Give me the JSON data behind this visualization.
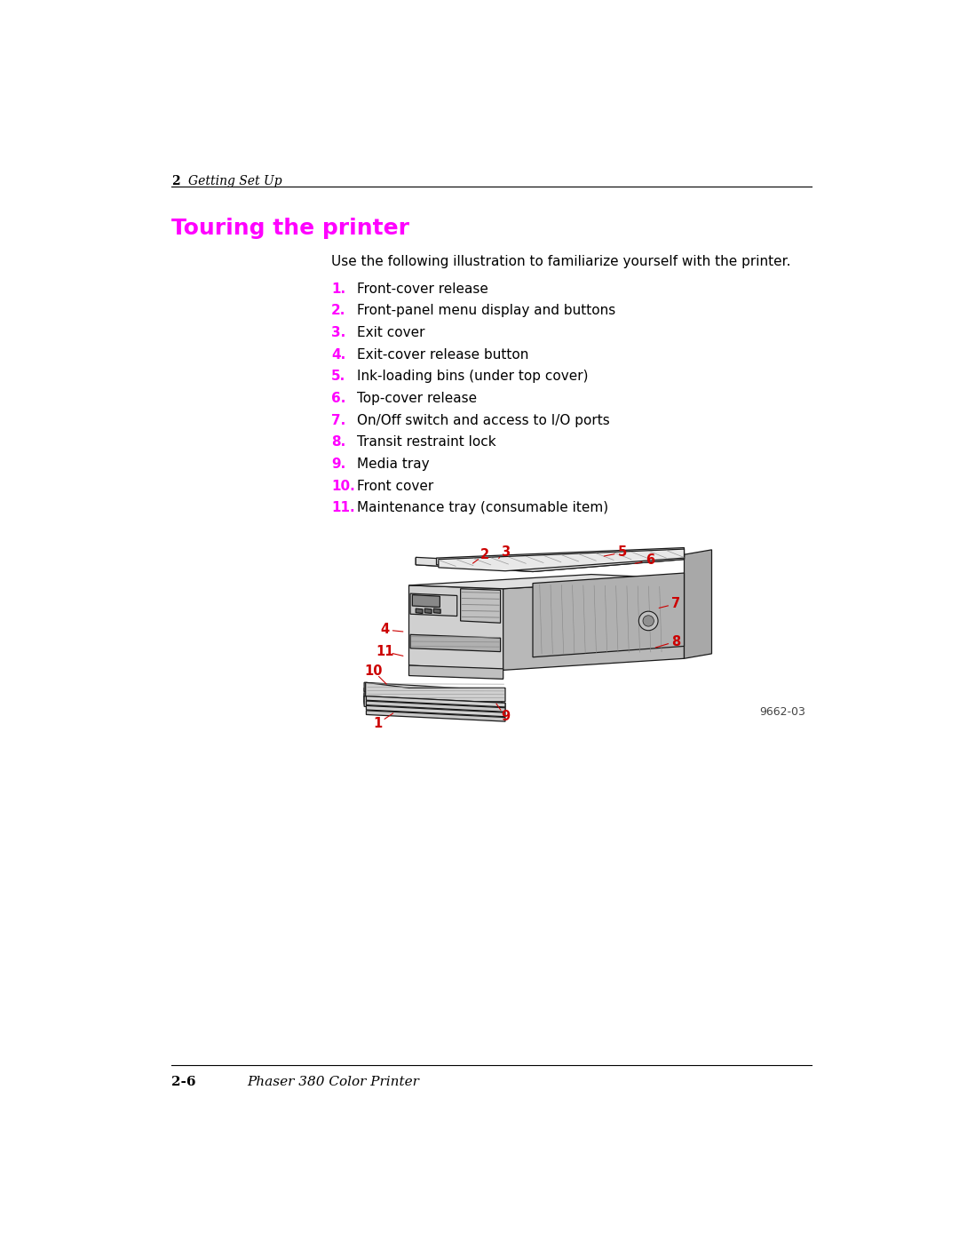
{
  "bg_color": "#ffffff",
  "page_width": 10.8,
  "page_height": 13.97,
  "header_chapter_num": "2",
  "header_chapter_title": "Getting Set Up",
  "section_title": "Touring the printer",
  "section_title_color": "#ff00ff",
  "intro_text": "Use the following illustration to familiarize yourself with the printer.",
  "items": [
    {
      "num": "1.",
      "text": "Front-cover release"
    },
    {
      "num": "2.",
      "text": "Front-panel menu display and buttons"
    },
    {
      "num": "3.",
      "text": "Exit cover"
    },
    {
      "num": "4.",
      "text": "Exit-cover release button"
    },
    {
      "num": "5.",
      "text": "Ink-loading bins (under top cover)"
    },
    {
      "num": "6.",
      "text": "Top-cover release"
    },
    {
      "num": "7.",
      "text": "On/Off switch and access to I/O ports"
    },
    {
      "num": "8.",
      "text": "Transit restraint lock"
    },
    {
      "num": "9.",
      "text": "Media tray"
    },
    {
      "num": "10.",
      "text": "Front cover"
    },
    {
      "num": "11.",
      "text": "Maintenance tray (consumable item)"
    }
  ],
  "num_color": "#ff00ff",
  "text_color": "#000000",
  "footer_bold": "2-6",
  "footer_italic": "Phaser 380 Color Printer",
  "caption": "9662-03",
  "red_label_color": "#cc0000"
}
